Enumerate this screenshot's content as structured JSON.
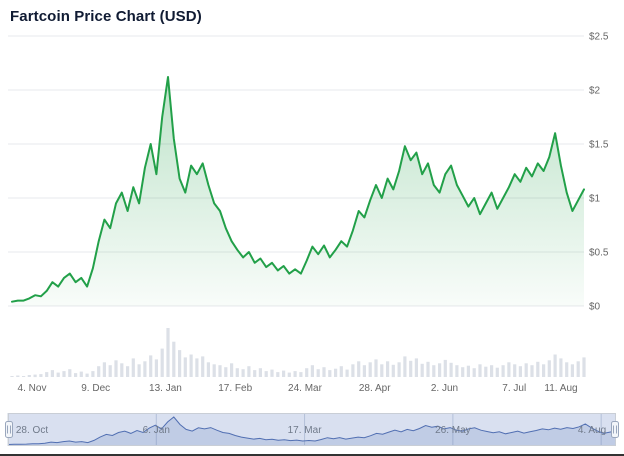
{
  "chart_data": {
    "type": "area",
    "title": "Fartcoin Price Chart (USD)",
    "legend": "none",
    "grid": true,
    "ylim": [
      0,
      2.5
    ],
    "total_days": 287,
    "y_ticks": [
      {
        "value": 0,
        "label": "$0"
      },
      {
        "value": 0.5,
        "label": "$0.5"
      },
      {
        "value": 1,
        "label": "$1"
      },
      {
        "value": 1.5,
        "label": "$1.5"
      },
      {
        "value": 2,
        "label": "$2"
      },
      {
        "value": 2.5,
        "label": "$2.5"
      }
    ],
    "x_ticks": [
      {
        "label": "4. Nov",
        "day": 7
      },
      {
        "label": "9. Dec",
        "day": 42
      },
      {
        "label": "13. Jan",
        "day": 77
      },
      {
        "label": "17. Feb",
        "day": 112
      },
      {
        "label": "24. Mar",
        "day": 147
      },
      {
        "label": "28. Apr",
        "day": 182
      },
      {
        "label": "2. Jun",
        "day": 217
      },
      {
        "label": "7. Jul",
        "day": 252
      },
      {
        "label": "11. Aug",
        "day": 287
      }
    ],
    "price_series": {
      "name": "Fartcoin price (USD)",
      "color": "#22a049",
      "values": [
        0.04,
        0.05,
        0.05,
        0.07,
        0.1,
        0.09,
        0.14,
        0.22,
        0.18,
        0.26,
        0.3,
        0.22,
        0.26,
        0.18,
        0.35,
        0.6,
        0.8,
        0.72,
        0.95,
        1.05,
        0.88,
        1.1,
        0.95,
        1.28,
        1.5,
        1.22,
        1.75,
        2.12,
        1.55,
        1.18,
        1.05,
        1.3,
        1.22,
        1.32,
        1.12,
        0.95,
        0.88,
        0.72,
        0.6,
        0.52,
        0.45,
        0.5,
        0.4,
        0.44,
        0.36,
        0.4,
        0.33,
        0.37,
        0.3,
        0.34,
        0.3,
        0.42,
        0.55,
        0.48,
        0.56,
        0.45,
        0.52,
        0.6,
        0.55,
        0.7,
        0.88,
        0.82,
        0.98,
        1.12,
        1.0,
        1.18,
        1.08,
        1.25,
        1.48,
        1.35,
        1.42,
        1.22,
        1.32,
        1.12,
        1.05,
        1.22,
        1.3,
        1.12,
        1.02,
        0.92,
        1.0,
        0.85,
        0.95,
        1.05,
        0.9,
        1.0,
        1.1,
        1.22,
        1.15,
        1.28,
        1.2,
        1.32,
        1.25,
        1.38,
        1.6,
        1.3,
        1.05,
        0.88,
        0.98,
        1.08
      ]
    },
    "volume_series": {
      "name": "Volume",
      "color": "#dce0e7",
      "values": [
        2,
        3,
        2,
        4,
        5,
        6,
        10,
        14,
        9,
        12,
        16,
        8,
        11,
        7,
        12,
        22,
        30,
        24,
        34,
        28,
        22,
        38,
        26,
        32,
        44,
        36,
        58,
        100,
        72,
        55,
        40,
        46,
        38,
        42,
        30,
        26,
        24,
        20,
        28,
        18,
        16,
        22,
        14,
        18,
        12,
        15,
        10,
        13,
        9,
        12,
        10,
        18,
        24,
        16,
        20,
        14,
        17,
        22,
        15,
        26,
        32,
        24,
        30,
        36,
        26,
        32,
        25,
        30,
        42,
        33,
        38,
        27,
        31,
        24,
        28,
        35,
        29,
        24,
        20,
        23,
        18,
        26,
        21,
        24,
        19,
        24,
        30,
        26,
        22,
        28,
        24,
        31,
        26,
        34,
        46,
        38,
        30,
        26,
        32,
        40
      ]
    },
    "navigator": {
      "line_color": "#4a69ad",
      "fill_color": "rgba(74,105,173,0.18)",
      "mask_color": "rgba(102,133,194,0.25)",
      "outline_color": "#c9ced6",
      "labels": [
        {
          "label": "28. Oct",
          "day": 0
        },
        {
          "label": "6. Jan",
          "day": 70
        },
        {
          "label": "17. Mar",
          "day": 140
        },
        {
          "label": "26. May",
          "day": 210
        },
        {
          "label": "4. Aug",
          "day": 280
        }
      ]
    },
    "colors": {
      "grid": "#e7e8ec",
      "axis_label": "#666666",
      "nav_label": "#707a8a",
      "title": "#101b33"
    }
  }
}
